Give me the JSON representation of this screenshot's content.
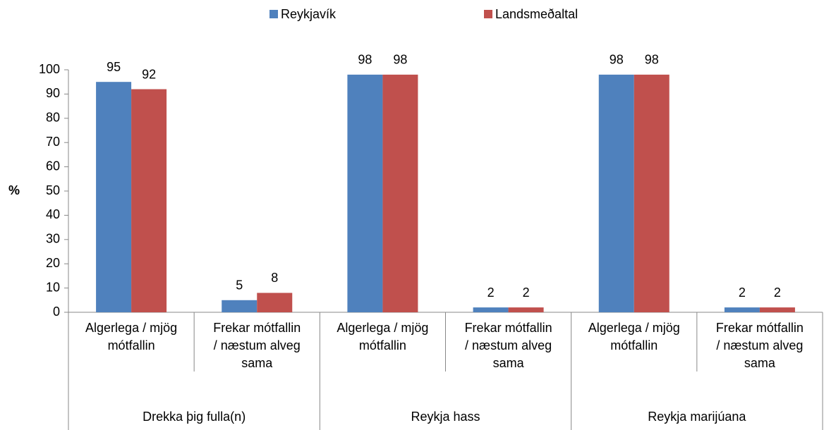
{
  "chart_data": {
    "type": "bar",
    "ylabel": "%",
    "categories": [
      [
        "Algerlega / mjög",
        "mótfallin"
      ],
      [
        "Frekar mótfallin",
        "/ næstum alveg",
        "sama"
      ],
      [
        "Algerlega / mjög",
        "mótfallin"
      ],
      [
        "Frekar mótfallin",
        "/ næstum alveg",
        "sama"
      ],
      [
        "Algerlega / mjög",
        "mótfallin"
      ],
      [
        "Frekar mótfallin",
        "/ næstum alveg",
        "sama"
      ]
    ],
    "groups": [
      "Drekka þig fulla(n)",
      "Reykja hass",
      "Reykja marijúana"
    ],
    "series": [
      {
        "name": "Reykjavík",
        "color": "#4f81bd",
        "values": [
          95,
          5,
          98,
          2,
          98,
          2
        ]
      },
      {
        "name": "Landsmeðaltal",
        "color": "#c0504d",
        "values": [
          92,
          8,
          98,
          2,
          98,
          2
        ]
      }
    ],
    "ylim": [
      0,
      100
    ],
    "yticks": [
      0,
      10,
      20,
      30,
      40,
      50,
      60,
      70,
      80,
      90,
      100
    ],
    "legend": "top",
    "grid": false
  }
}
